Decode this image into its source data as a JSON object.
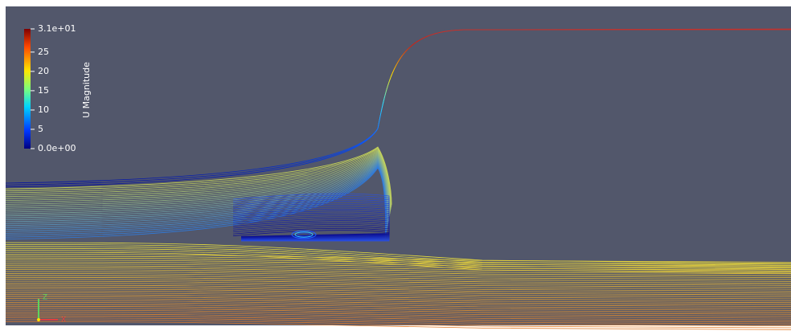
{
  "colorbar": {
    "title": "U Magnitude",
    "range": [
      0,
      31
    ],
    "ticks": [
      {
        "value": 31,
        "label": "3.1e+01"
      },
      25,
      20,
      15,
      10,
      5,
      {
        "value": 0,
        "label": "0.0e+00"
      }
    ]
  },
  "axes_triad": {
    "labels": [
      "Z",
      "X"
    ]
  }
}
